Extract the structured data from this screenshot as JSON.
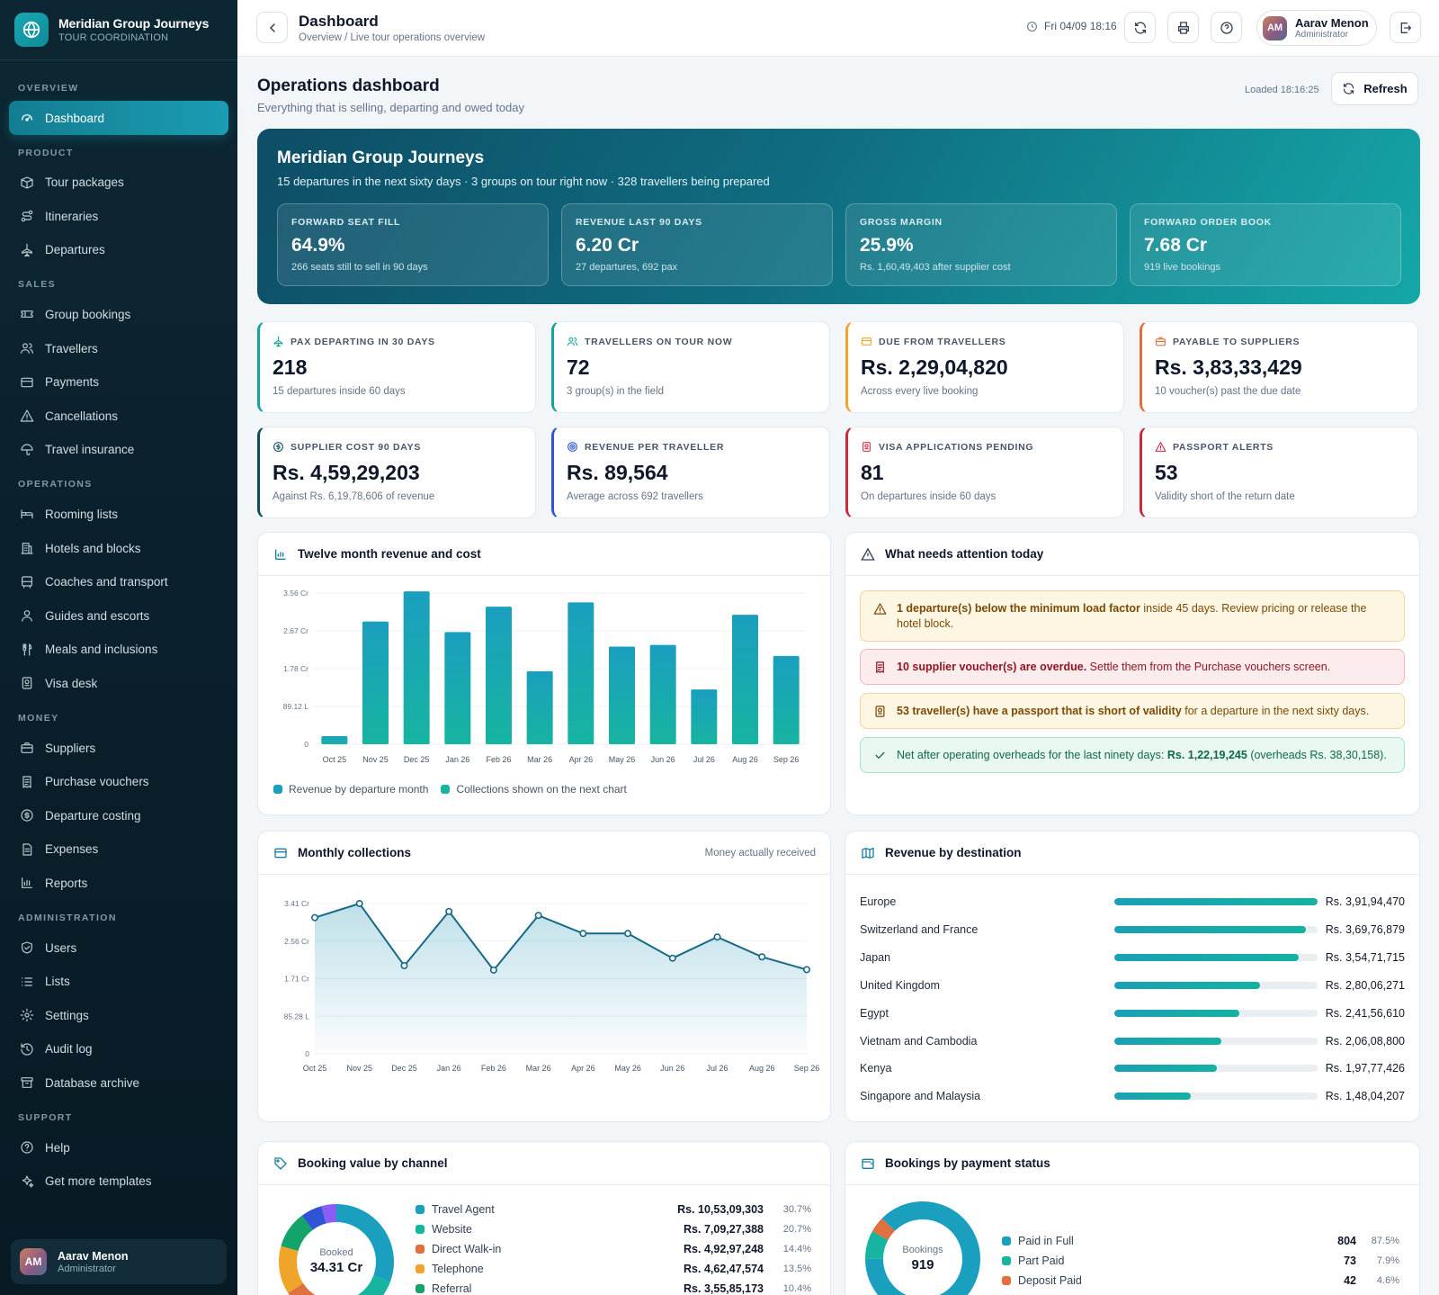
{
  "brand": {
    "title": "Meridian Group Journeys",
    "subtitle": "TOUR COORDINATION"
  },
  "sidebar": {
    "sections": [
      {
        "title": "OVERVIEW",
        "items": [
          {
            "label": "Dashboard",
            "icon": "gauge-icon",
            "active": true
          }
        ]
      },
      {
        "title": "PRODUCT",
        "items": [
          {
            "label": "Tour packages",
            "icon": "package-icon"
          },
          {
            "label": "Itineraries",
            "icon": "route-icon"
          },
          {
            "label": "Departures",
            "icon": "plane-icon"
          }
        ]
      },
      {
        "title": "SALES",
        "items": [
          {
            "label": "Group bookings",
            "icon": "ticket-icon"
          },
          {
            "label": "Travellers",
            "icon": "users-icon"
          },
          {
            "label": "Payments",
            "icon": "card-icon"
          },
          {
            "label": "Cancellations",
            "icon": "warning-icon"
          },
          {
            "label": "Travel insurance",
            "icon": "umbrella-icon"
          }
        ]
      },
      {
        "title": "OPERATIONS",
        "items": [
          {
            "label": "Rooming lists",
            "icon": "bed-icon"
          },
          {
            "label": "Hotels and blocks",
            "icon": "building-icon"
          },
          {
            "label": "Coaches and transport",
            "icon": "bus-icon"
          },
          {
            "label": "Guides and escorts",
            "icon": "user-icon"
          },
          {
            "label": "Meals and inclusions",
            "icon": "utensils-icon"
          },
          {
            "label": "Visa desk",
            "icon": "passport-icon"
          }
        ]
      },
      {
        "title": "MONEY",
        "items": [
          {
            "label": "Suppliers",
            "icon": "briefcase-icon"
          },
          {
            "label": "Purchase vouchers",
            "icon": "receipt-icon"
          },
          {
            "label": "Departure costing",
            "icon": "coin-icon"
          },
          {
            "label": "Expenses",
            "icon": "file-icon"
          },
          {
            "label": "Reports",
            "icon": "chart-icon"
          }
        ]
      },
      {
        "title": "ADMINISTRATION",
        "items": [
          {
            "label": "Users",
            "icon": "shield-icon"
          },
          {
            "label": "Lists",
            "icon": "list-icon"
          },
          {
            "label": "Settings",
            "icon": "gear-icon"
          },
          {
            "label": "Audit log",
            "icon": "history-icon"
          },
          {
            "label": "Database archive",
            "icon": "archive-icon"
          }
        ]
      },
      {
        "title": "SUPPORT",
        "items": [
          {
            "label": "Help",
            "icon": "help-icon"
          },
          {
            "label": "Get more templates",
            "icon": "sparkle-icon"
          }
        ]
      }
    ],
    "user": {
      "initials": "AM",
      "name": "Aarav Menon",
      "role": "Administrator"
    }
  },
  "topbar": {
    "title": "Dashboard",
    "breadcrumb": "Overview / Live tour operations overview",
    "datetime": "Fri 04/09 18:16",
    "user": {
      "initials": "AM",
      "name": "Aarav Menon",
      "role": "Administrator"
    }
  },
  "page": {
    "title": "Operations dashboard",
    "subtitle": "Everything that is selling, departing and owed today",
    "loaded": "Loaded 18:16:25",
    "refresh_label": "Refresh"
  },
  "hero": {
    "title": "Meridian Group Journeys",
    "subtitle": "15 departures in the next sixty days · 3 groups on tour right now · 328 travellers being prepared",
    "tiles": [
      {
        "label": "FORWARD SEAT FILL",
        "value": "64.9%",
        "sub": "266 seats still to sell in 90 days"
      },
      {
        "label": "REVENUE LAST 90 DAYS",
        "value": "6.20 Cr",
        "sub": "27 departures, 692 pax"
      },
      {
        "label": "GROSS MARGIN",
        "value": "25.9%",
        "sub": "Rs. 1,60,49,403 after supplier cost"
      },
      {
        "label": "FORWARD ORDER BOOK",
        "value": "7.68 Cr",
        "sub": "919 live bookings"
      }
    ]
  },
  "stats": [
    {
      "label": "PAX DEPARTING IN 30 DAYS",
      "value": "218",
      "sub": "15 departures inside 60 days",
      "icon": "plane-icon",
      "color": "#14a39c"
    },
    {
      "label": "TRAVELLERS ON TOUR NOW",
      "value": "72",
      "sub": "3 group(s) in the field",
      "icon": "users-icon",
      "color": "#14a39c"
    },
    {
      "label": "DUE FROM TRAVELLERS",
      "value": "Rs. 2,29,04,820",
      "sub": "Across every live booking",
      "icon": "card-icon",
      "color": "#f0a52a"
    },
    {
      "label": "PAYABLE TO SUPPLIERS",
      "value": "Rs. 3,83,33,429",
      "sub": "10 voucher(s) past the due date",
      "icon": "briefcase-icon",
      "color": "#e0713f"
    },
    {
      "label": "SUPPLIER COST 90 DAYS",
      "value": "Rs. 4,59,29,203",
      "sub": "Against Rs. 6,19,78,606 of revenue",
      "icon": "coin-icon",
      "color": "#0f4c5c"
    },
    {
      "label": "REVENUE PER TRAVELLER",
      "value": "Rs. 89,564",
      "sub": "Average across 692 travellers",
      "icon": "target-icon",
      "color": "#2f55d4"
    },
    {
      "label": "VISA APPLICATIONS PENDING",
      "value": "81",
      "sub": "On departures inside 60 days",
      "icon": "passport-icon",
      "color": "#c92b3a"
    },
    {
      "label": "PASSPORT ALERTS",
      "value": "53",
      "sub": "Validity short of the return date",
      "icon": "warning-icon",
      "color": "#c92b3a"
    }
  ],
  "revenue_card": {
    "title": "Twelve month revenue and cost",
    "legend": [
      "Revenue by departure month",
      "Collections shown on the next chart"
    ],
    "legend_colors": [
      "#1a9fbf",
      "#17b4a0"
    ]
  },
  "attention": {
    "title": "What needs attention today",
    "alerts": [
      {
        "type": "warning",
        "bold": "1 departure(s) below the minimum load factor",
        "text": " inside 45 days. Review pricing or release the hotel block.",
        "bg": "#fdf6e3",
        "border": "#f1d59a",
        "color": "#7a4a06",
        "icon": "warning-icon"
      },
      {
        "type": "danger",
        "bold": "10 supplier voucher(s) are overdue.",
        "text": " Settle them from the Purchase vouchers screen.",
        "bg": "#fdeced",
        "border": "#f3b5bb",
        "color": "#8f1622",
        "icon": "receipt-icon"
      },
      {
        "type": "warning",
        "bold": "53 traveller(s) have a passport that is short of validity",
        "text": " for a departure in the next sixty days.",
        "bg": "#fdf6e3",
        "border": "#f1d59a",
        "color": "#7a4a06",
        "icon": "passport-icon"
      },
      {
        "type": "success",
        "prefix": "Net after operating overheads for the last ninety days: ",
        "bold": "Rs. 1,22,19,245",
        "text": " (overheads Rs. 38,30,158).",
        "bg": "#e9f8f1",
        "border": "#a6e2c6",
        "color": "#0d6a46",
        "icon": "check-icon"
      }
    ]
  },
  "collections_card": {
    "title": "Monthly collections",
    "note": "Money actually received"
  },
  "destination_card": {
    "title": "Revenue by destination",
    "rows": [
      {
        "name": "Europe",
        "amount": "Rs. 3,91,94,470",
        "share": 1.0
      },
      {
        "name": "Switzerland and France",
        "amount": "Rs. 3,69,76,879",
        "share": 0.943
      },
      {
        "name": "Japan",
        "amount": "Rs. 3,54,71,715",
        "share": 0.905
      },
      {
        "name": "United Kingdom",
        "amount": "Rs. 2,80,06,271",
        "share": 0.715
      },
      {
        "name": "Egypt",
        "amount": "Rs. 2,41,56,610",
        "share": 0.616
      },
      {
        "name": "Vietnam and Cambodia",
        "amount": "Rs. 2,06,08,800",
        "share": 0.526
      },
      {
        "name": "Kenya",
        "amount": "Rs. 1,97,77,426",
        "share": 0.505
      },
      {
        "name": "Singapore and Malaysia",
        "amount": "Rs. 1,48,04,207",
        "share": 0.378
      }
    ]
  },
  "channel_card": {
    "title": "Booking value by channel",
    "center_label": "Booked",
    "center_value": "34.31 Cr",
    "rows": [
      {
        "name": "Travel Agent",
        "amount": "Rs. 10,53,09,303",
        "pct": "30.7%",
        "value": 30.7,
        "color": "#1a9fbf"
      },
      {
        "name": "Website",
        "amount": "Rs. 7,09,27,388",
        "pct": "20.7%",
        "value": 20.7,
        "color": "#17b4a0"
      },
      {
        "name": "Direct Walk-in",
        "amount": "Rs. 4,92,97,248",
        "pct": "14.4%",
        "value": 14.4,
        "color": "#e0713f"
      },
      {
        "name": "Telephone",
        "amount": "Rs. 4,62,47,574",
        "pct": "13.5%",
        "value": 13.5,
        "color": "#f0a52a"
      },
      {
        "name": "Referral",
        "amount": "Rs. 3,55,85,173",
        "pct": "10.4%",
        "value": 10.4,
        "color": "#14a36a"
      }
    ],
    "donut_rest": [
      {
        "value": 6.0,
        "color": "#2f55d4"
      },
      {
        "value": 4.3,
        "color": "#8b5cf6"
      }
    ]
  },
  "status_card": {
    "title": "Bookings by payment status",
    "center_label": "Bookings",
    "center_value": "919",
    "rows": [
      {
        "name": "Paid in Full",
        "count": "804",
        "pct": "87.5%",
        "value": 87.5,
        "color": "#1a9fbf"
      },
      {
        "name": "Part Paid",
        "count": "73",
        "pct": "7.9%",
        "value": 7.9,
        "color": "#17b4a0"
      },
      {
        "name": "Deposit Paid",
        "count": "42",
        "pct": "4.6%",
        "value": 4.6,
        "color": "#e0713f"
      }
    ]
  },
  "chart_data": [
    {
      "type": "bar",
      "title": "Twelve month revenue and cost",
      "categories": [
        "Oct 25",
        "Nov 25",
        "Dec 25",
        "Jan 26",
        "Feb 26",
        "Mar 26",
        "Apr 26",
        "May 26",
        "Jun 26",
        "Jul 26",
        "Aug 26",
        "Sep 26"
      ],
      "series": [
        {
          "name": "Revenue by departure month",
          "values": [
            0.19,
            2.89,
            3.6,
            2.64,
            3.24,
            1.72,
            3.34,
            2.3,
            2.34,
            1.29,
            3.05,
            2.08
          ]
        }
      ],
      "unit": "Cr",
      "yticks": [
        "0",
        "89.12 L",
        "1.78 Cr",
        "2.67 Cr",
        "3.56 Cr"
      ],
      "ylim": [
        0,
        3.56
      ],
      "legend": [
        "Revenue by departure month",
        "Collections shown on the next chart"
      ],
      "grid": true
    },
    {
      "type": "area",
      "title": "Monthly collections",
      "categories": [
        "Oct 25",
        "Nov 25",
        "Dec 25",
        "Jan 26",
        "Feb 26",
        "Mar 26",
        "Apr 26",
        "May 26",
        "Jun 26",
        "Jul 26",
        "Aug 26",
        "Sep 26"
      ],
      "values": [
        3.09,
        3.41,
        2.0,
        3.23,
        1.9,
        3.14,
        2.73,
        2.73,
        2.17,
        2.65,
        2.2,
        1.91
      ],
      "unit": "Cr",
      "yticks": [
        "0",
        "85.28 L",
        "1.71 Cr",
        "2.56 Cr",
        "3.41 Cr"
      ],
      "ylim": [
        0,
        3.41
      ],
      "grid": true
    }
  ]
}
